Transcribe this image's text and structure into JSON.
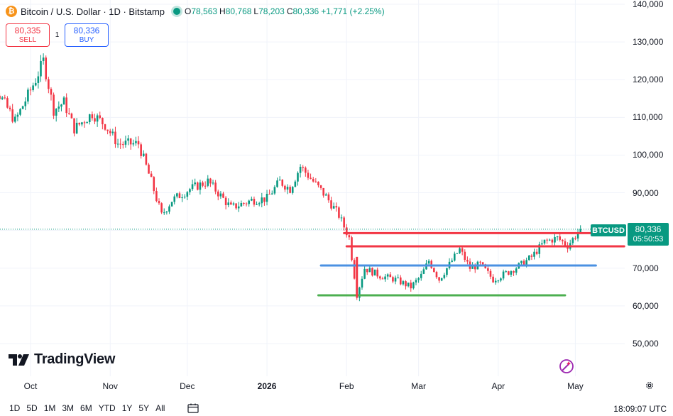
{
  "header": {
    "logo_glyph": "₿",
    "title": "Bitcoin / U.S. Dollar · 1D · Bitstamp",
    "ohlc": [
      {
        "key": "O",
        "value": "78,563"
      },
      {
        "key": "H",
        "value": "80,768"
      },
      {
        "key": "L",
        "value": "78,203"
      },
      {
        "key": "C",
        "value": "80,336"
      }
    ],
    "change": "+1,771 (+2.25%)"
  },
  "trade": {
    "sell_price": "80,335",
    "sell_label": "SELL",
    "spread": "1",
    "buy_price": "80,336",
    "buy_label": "BUY"
  },
  "price_scale": {
    "symbol": "BTCUSD",
    "last_price": "80,336",
    "countdown": "05:50:53"
  },
  "branding": {
    "name": "TradingView"
  },
  "footer": {
    "timeframes": [
      "1D",
      "5D",
      "1M",
      "3M",
      "6M",
      "YTD",
      "1Y",
      "5Y",
      "All"
    ],
    "clock": "18:09:07 UTC"
  },
  "colors": {
    "up": "#089981",
    "down": "#f23645",
    "resistance": "#f23645",
    "support_mid": "#4a90e2",
    "support_low": "#4caf50",
    "grid": "#f0f3fa"
  },
  "icons": [
    "bitcoin-logo-icon",
    "market-status-icon",
    "calendar-range-icon",
    "settings-gear-icon",
    "magic-wand-icon"
  ],
  "chart_data": {
    "type": "candlestick",
    "title": "Bitcoin / U.S. Dollar · 1D · Bitstamp",
    "ylim": [
      50000,
      140000
    ],
    "y_ticks": [
      140000,
      130000,
      120000,
      110000,
      100000,
      90000,
      80000,
      70000,
      60000,
      50000
    ],
    "y_tick_labels": [
      "140,000",
      "130,000",
      "120,000",
      "110,000",
      "100,000",
      "90,000",
      "80,000",
      "70,000",
      "60,000",
      "50,000"
    ],
    "x_ticks": [
      {
        "label": "Oct",
        "date": "2025-10-01",
        "bold": false
      },
      {
        "label": "Nov",
        "date": "2025-11-01",
        "bold": false
      },
      {
        "label": "Dec",
        "date": "2025-12-01",
        "bold": false
      },
      {
        "label": "2026",
        "date": "2026-01-01",
        "bold": true
      },
      {
        "label": "Feb",
        "date": "2026-02-01",
        "bold": false
      },
      {
        "label": "Mar",
        "date": "2026-03-01",
        "bold": false
      },
      {
        "label": "Apr",
        "date": "2026-04-01",
        "bold": false
      },
      {
        "label": "May",
        "date": "2026-05-01",
        "bold": false
      }
    ],
    "close_path": [
      [
        "2025-09-10",
        113000
      ],
      [
        "2025-09-18",
        117000
      ],
      [
        "2025-09-25",
        109000
      ],
      [
        "2025-10-03",
        120000
      ],
      [
        "2025-10-06",
        125000
      ],
      [
        "2025-10-10",
        112000
      ],
      [
        "2025-10-14",
        114000
      ],
      [
        "2025-10-18",
        107000
      ],
      [
        "2025-10-25",
        111000
      ],
      [
        "2025-10-30",
        108000
      ],
      [
        "2025-11-04",
        103000
      ],
      [
        "2025-11-12",
        103000
      ],
      [
        "2025-11-17",
        93000
      ],
      [
        "2025-11-21",
        84000
      ],
      [
        "2025-11-25",
        88000
      ],
      [
        "2025-12-02",
        91000
      ],
      [
        "2025-12-09",
        93000
      ],
      [
        "2025-12-13",
        90000
      ],
      [
        "2025-12-18",
        86000
      ],
      [
        "2025-12-26",
        88000
      ],
      [
        "2026-01-01",
        88500
      ],
      [
        "2026-01-06",
        93000
      ],
      [
        "2026-01-10",
        91000
      ],
      [
        "2026-01-14",
        97000
      ],
      [
        "2026-01-19",
        93000
      ],
      [
        "2026-01-24",
        89000
      ],
      [
        "2026-01-29",
        84000
      ],
      [
        "2026-02-02",
        78000
      ],
      [
        "2026-02-05",
        63000
      ],
      [
        "2026-02-08",
        70000
      ],
      [
        "2026-02-14",
        68000
      ],
      [
        "2026-02-20",
        67000
      ],
      [
        "2026-02-26",
        65000
      ],
      [
        "2026-03-02",
        68000
      ],
      [
        "2026-03-05",
        72000
      ],
      [
        "2026-03-09",
        67000
      ],
      [
        "2026-03-14",
        72000
      ],
      [
        "2026-03-17",
        75000
      ],
      [
        "2026-03-21",
        70000
      ],
      [
        "2026-03-25",
        71000
      ],
      [
        "2026-03-30",
        67000
      ],
      [
        "2026-04-05",
        69000
      ],
      [
        "2026-04-10",
        71000
      ],
      [
        "2026-04-14",
        73000
      ],
      [
        "2026-04-19",
        77000
      ],
      [
        "2026-04-24",
        78000
      ],
      [
        "2026-04-28",
        76000
      ],
      [
        "2026-05-03",
        80336
      ]
    ],
    "horizontal_levels": [
      {
        "role": "resistance-upper",
        "price": 79300,
        "from": "2026-01-31",
        "to": "2026-05-20",
        "color": "#f23645"
      },
      {
        "role": "resistance-lower",
        "price": 75800,
        "from": "2026-02-01",
        "to": "2026-05-20",
        "color": "#f23645"
      },
      {
        "role": "support-mid",
        "price": 70700,
        "from": "2026-01-22",
        "to": "2026-05-09",
        "color": "#4a90e2"
      },
      {
        "role": "support-low",
        "price": 62800,
        "from": "2026-01-21",
        "to": "2026-04-27",
        "color": "#4caf50"
      }
    ],
    "last_price": 80336
  }
}
